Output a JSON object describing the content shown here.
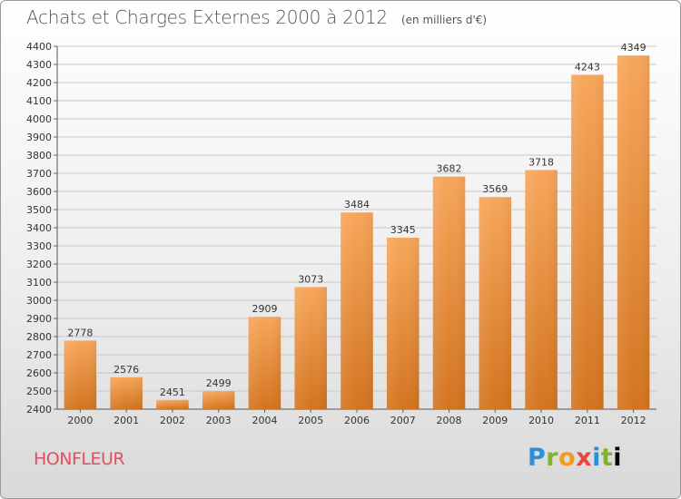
{
  "header": {
    "title": "Achats et Charges Externes 2000 à 2012",
    "unit": "(en milliers d'€)"
  },
  "footer": {
    "city": "HONFLEUR",
    "brand": "Proxiti"
  },
  "colors": {
    "bar_light": "#f7a65a",
    "bar_dark": "#d3741f",
    "grid": "#c8c8c8",
    "city": "#e05060"
  },
  "chart_data": {
    "type": "bar",
    "title": "Achats et Charges Externes 2000 à 2012",
    "subtitle": "(en milliers d'€)",
    "xlabel": "",
    "ylabel": "",
    "categories": [
      "2000",
      "2001",
      "2002",
      "2003",
      "2004",
      "2005",
      "2006",
      "2007",
      "2008",
      "2009",
      "2010",
      "2011",
      "2012"
    ],
    "values": [
      2778,
      2576,
      2451,
      2499,
      2909,
      3073,
      3484,
      3345,
      3682,
      3569,
      3718,
      4243,
      4349
    ],
    "ylim": [
      2400,
      4400
    ],
    "ytick_step": 100,
    "grid": true,
    "legend": "none"
  }
}
